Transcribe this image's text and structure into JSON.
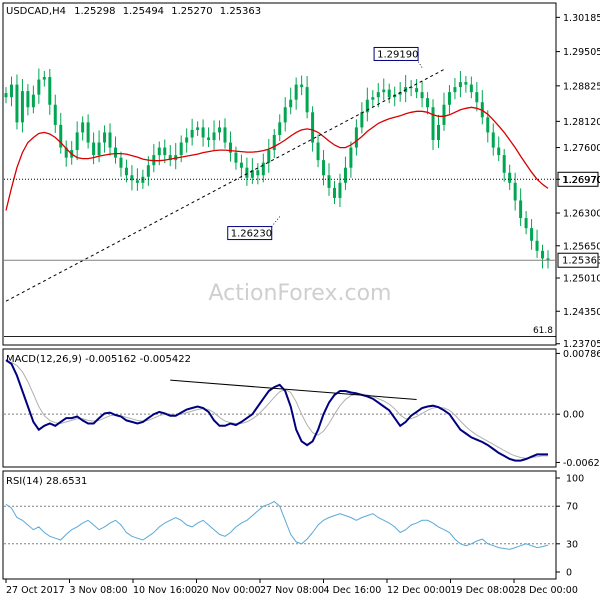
{
  "chart_data": {
    "type": "candlestick",
    "symbol_header": "USDCAD,H4",
    "ohlc_header": [
      "1.25298",
      "1.25494",
      "1.25270",
      "1.25363"
    ],
    "watermark": "ActionForex.com",
    "colors": {
      "candle": "#00a651",
      "ma": "#d90000",
      "trendline": "#000000",
      "macd_line": "#000080",
      "macd_signal": "#b0b0b0",
      "rsi": "#5aa9d8",
      "reference": "#808080",
      "label_border": "#000080"
    },
    "price_axis": {
      "ticks": [
        "1.30185",
        "1.29505",
        "1.28825",
        "1.28120",
        "1.27600",
        "1.26970",
        "1.26300",
        "1.25650",
        "1.25010",
        "1.24350",
        "1.23705"
      ],
      "range": [
        1.237,
        1.3045
      ]
    },
    "x_axis": {
      "labels": [
        "27 Oct 2017",
        "3 Nov 08:00",
        "10 Nov 16:00",
        "20 Nov 00:00",
        "27 Nov 08:00",
        "4 Dec 16:00",
        "12 Dec 00:00",
        "19 Dec 08:00",
        "28 Dec 00:00"
      ]
    },
    "price_series": {
      "close": [
        1.286,
        1.2885,
        1.281,
        1.2872,
        1.284,
        1.2865,
        1.2895,
        1.29,
        1.2845,
        1.2805,
        1.276,
        1.274,
        1.2755,
        1.279,
        1.281,
        1.277,
        1.2745,
        1.277,
        1.279,
        1.276,
        1.274,
        1.272,
        1.2705,
        1.2695,
        1.269,
        1.2702,
        1.2725,
        1.2745,
        1.276,
        1.2745,
        1.2735,
        1.2745,
        1.277,
        1.278,
        1.2795,
        1.28,
        1.278,
        1.2775,
        1.279,
        1.28,
        1.277,
        1.275,
        1.273,
        1.272,
        1.27,
        1.2715,
        1.2705,
        1.273,
        1.2755,
        1.2785,
        1.281,
        1.284,
        1.2855,
        1.2885,
        1.288,
        1.283,
        1.277,
        1.2735,
        1.2705,
        1.268,
        1.266,
        1.269,
        1.272,
        1.276,
        1.28,
        1.283,
        1.2855,
        1.286,
        1.287,
        1.2875,
        1.286,
        1.2865,
        1.287,
        1.288,
        1.2878,
        1.287,
        1.2858,
        1.284,
        1.2775,
        1.2805,
        1.2845,
        1.287,
        1.288,
        1.289,
        1.2885,
        1.287,
        1.285,
        1.282,
        1.279,
        1.276,
        1.2745,
        1.271,
        1.269,
        1.2655,
        1.262,
        1.26,
        1.2575,
        1.2555,
        1.254,
        1.2536
      ],
      "ma": [
        1.2635,
        1.268,
        1.272,
        1.275,
        1.277,
        1.278,
        1.2788,
        1.279,
        1.2787,
        1.278,
        1.277,
        1.2758,
        1.2747,
        1.274,
        1.2738,
        1.2738,
        1.274,
        1.2743,
        1.2745,
        1.2747,
        1.2748,
        1.2748,
        1.2747,
        1.2744,
        1.2741,
        1.2737,
        1.2735,
        1.2734,
        1.2734,
        1.2735,
        1.2737,
        1.2739,
        1.2741,
        1.2743,
        1.2745,
        1.2747,
        1.275,
        1.2752,
        1.2754,
        1.2755,
        1.2755,
        1.2754,
        1.2753,
        1.2752,
        1.2751,
        1.2751,
        1.2752,
        1.2754,
        1.2757,
        1.2762,
        1.2768,
        1.2775,
        1.2783,
        1.279,
        1.2795,
        1.2797,
        1.2795,
        1.279,
        1.2782,
        1.2773,
        1.2765,
        1.276,
        1.276,
        1.2765,
        1.2773,
        1.2782,
        1.2792,
        1.28,
        1.2808,
        1.2813,
        1.2817,
        1.282,
        1.2823,
        1.2827,
        1.283,
        1.2832,
        1.2832,
        1.283,
        1.2825,
        1.2822,
        1.2822,
        1.2825,
        1.283,
        1.2835,
        1.2838,
        1.284,
        1.2838,
        1.2834,
        1.2826,
        1.2815,
        1.2803,
        1.279,
        1.2775,
        1.276,
        1.2743,
        1.2727,
        1.2711,
        1.2697,
        1.2687,
        1.2679
      ]
    },
    "trendline": {
      "from": [
        0,
        1.2455
      ],
      "to": [
        80,
        1.2915
      ],
      "style": "dashed"
    },
    "annotations": [
      {
        "label": "1.29190",
        "x": 76,
        "y": 1.2919
      },
      {
        "label": "1.26230",
        "x": 50,
        "y": 1.2623
      }
    ],
    "horizontal_levels": [
      {
        "label": "1.26970",
        "y": 1.2697,
        "style": "dotted",
        "boxed": true
      },
      {
        "label": "1.25363",
        "y": 1.25363,
        "style": "solid",
        "boxed": true
      }
    ],
    "fib_label": "61.8",
    "fib_level": 1.2385,
    "macd": {
      "title": "MACD(12,26,9) -0.005162 -0.005422",
      "ticks": [
        "0.007861",
        "0.00",
        "-0.006241"
      ],
      "range": [
        -0.0067,
        0.0083
      ],
      "line": [
        0.007,
        0.0065,
        0.005,
        0.003,
        0.001,
        -0.001,
        -0.002,
        -0.0015,
        -0.0012,
        -0.0015,
        -0.001,
        -0.0005,
        -0.0005,
        -0.0003,
        -0.0008,
        -0.0012,
        -0.0012,
        -0.0005,
        0.0001,
        0.0002,
        -0.0001,
        -0.0003,
        -0.0008,
        -0.001,
        -0.0012,
        -0.001,
        -0.0005,
        0.0,
        0.0003,
        0.0001,
        -0.0002,
        -0.0002,
        0.0002,
        0.0006,
        0.0008,
        0.001,
        0.0008,
        0.0003,
        -0.0008,
        -0.0015,
        -0.0015,
        -0.0012,
        -0.0014,
        -0.001,
        -0.0005,
        0.0,
        0.001,
        0.002,
        0.003,
        0.0035,
        0.0038,
        0.003,
        0.001,
        -0.002,
        -0.0035,
        -0.004,
        -0.0035,
        -0.002,
        0.0,
        0.0015,
        0.0025,
        0.003,
        0.003,
        0.0028,
        0.0027,
        0.0025,
        0.0023,
        0.002,
        0.0015,
        0.001,
        0.0005,
        -0.0005,
        -0.0015,
        -0.001,
        -0.0002,
        0.0003,
        0.0008,
        0.001,
        0.0011,
        0.0009,
        0.0005,
        0.0,
        -0.001,
        -0.002,
        -0.0025,
        -0.003,
        -0.0033,
        -0.0036,
        -0.004,
        -0.0045,
        -0.005,
        -0.0054,
        -0.0058,
        -0.006,
        -0.006,
        -0.0058,
        -0.0055,
        -0.0052,
        -0.0052,
        -0.0052
      ],
      "signal": [
        0.0068,
        0.0067,
        0.0063,
        0.0055,
        0.0042,
        0.0026,
        0.001,
        -0.0002,
        -0.0008,
        -0.0011,
        -0.0012,
        -0.001,
        -0.0008,
        -0.0006,
        -0.0006,
        -0.0008,
        -0.0009,
        -0.0008,
        -0.0005,
        -0.0002,
        -0.0001,
        -0.0002,
        -0.0004,
        -0.0006,
        -0.0008,
        -0.0009,
        -0.0008,
        -0.0005,
        -0.0002,
        0.0,
        0.0,
        -0.0001,
        0.0,
        0.0002,
        0.0004,
        0.0006,
        0.0007,
        0.0006,
        0.0002,
        -0.0004,
        -0.0009,
        -0.0011,
        -0.0012,
        -0.0012,
        -0.001,
        -0.0006,
        -0.0001,
        0.0006,
        0.0014,
        0.0022,
        0.0029,
        0.0032,
        0.0028,
        0.0016,
        0.0,
        -0.0014,
        -0.0024,
        -0.0027,
        -0.0022,
        -0.0012,
        0.0,
        0.0011,
        0.0019,
        0.0024,
        0.0026,
        0.0026,
        0.0025,
        0.0023,
        0.002,
        0.0017,
        0.0013,
        0.0007,
        -0.0001,
        -0.0006,
        -0.0006,
        -0.0003,
        0.0001,
        0.0005,
        0.0008,
        0.0009,
        0.0008,
        0.0005,
        -0.0001,
        -0.0009,
        -0.0016,
        -0.0022,
        -0.0027,
        -0.0031,
        -0.0035,
        -0.0039,
        -0.0043,
        -0.0047,
        -0.0051,
        -0.0054,
        -0.0056,
        -0.0057,
        -0.0056,
        -0.0055,
        -0.0054,
        -0.0054
      ],
      "divergence_line": {
        "from": [
          30,
          0.0044
        ],
        "to": [
          75,
          0.0019
        ]
      }
    },
    "rsi": {
      "title": "RSI(14) 28.6531",
      "ticks": [
        "100",
        "70",
        "30",
        "0"
      ],
      "range": [
        0,
        100
      ],
      "levels": [
        70,
        30
      ],
      "values": [
        72,
        68,
        58,
        55,
        50,
        45,
        48,
        42,
        38,
        36,
        34,
        40,
        45,
        48,
        52,
        55,
        50,
        45,
        48,
        52,
        55,
        50,
        42,
        38,
        36,
        34,
        38,
        42,
        48,
        52,
        55,
        58,
        55,
        50,
        48,
        52,
        55,
        50,
        45,
        40,
        38,
        42,
        48,
        52,
        55,
        60,
        65,
        70,
        72,
        75,
        70,
        55,
        40,
        32,
        30,
        35,
        42,
        50,
        55,
        58,
        60,
        62,
        60,
        58,
        55,
        58,
        60,
        62,
        58,
        55,
        52,
        48,
        42,
        45,
        50,
        52,
        55,
        55,
        52,
        48,
        45,
        42,
        35,
        30,
        28,
        30,
        33,
        35,
        30,
        28,
        26,
        25,
        24,
        26,
        28,
        30,
        28,
        26,
        27,
        28.6
      ]
    }
  }
}
